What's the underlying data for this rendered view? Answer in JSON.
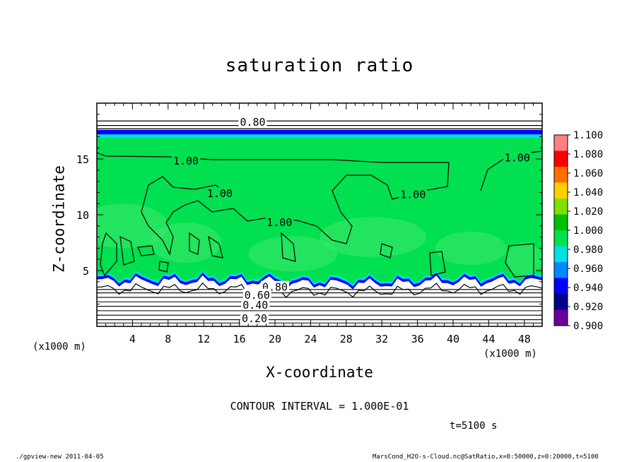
{
  "chart_data": {
    "type": "heatmap",
    "title": "saturation ratio",
    "xlabel": "X-coordinate",
    "ylabel": "Z-coordinate",
    "x_unit": "(x1000 m)",
    "xlim": [
      0,
      50
    ],
    "ylim": [
      0,
      20
    ],
    "x_ticks": [
      4,
      8,
      12,
      16,
      20,
      24,
      28,
      32,
      36,
      40,
      44,
      48
    ],
    "y_ticks": [
      5,
      10,
      15
    ],
    "colorbar": {
      "levels": [
        0.9,
        0.92,
        0.94,
        0.96,
        0.98,
        1.0,
        1.02,
        1.04,
        1.06,
        1.08,
        1.1
      ],
      "labels": [
        "0.900",
        "0.920",
        "0.940",
        "0.960",
        "0.980",
        "1.000",
        "1.020",
        "1.040",
        "1.060",
        "1.080",
        "1.100"
      ],
      "colors": [
        "#6a0099",
        "#00008b",
        "#0000ff",
        "#0088ff",
        "#00e0e0",
        "#00e050",
        "#00c000",
        "#7fe000",
        "#ffd000",
        "#ff7000",
        "#ff0000",
        "#ff8080"
      ]
    },
    "contour_interval": "CONTOUR INTERVAL = 1.000E-01",
    "contour_labels": [
      {
        "text": "0.80",
        "x": 17.5,
        "y": 18.3
      },
      {
        "text": "1.00",
        "x": 10,
        "y": 14.8
      },
      {
        "text": "1.00",
        "x": 13.8,
        "y": 11.9
      },
      {
        "text": "1.00",
        "x": 20.5,
        "y": 9.3
      },
      {
        "text": "1.00",
        "x": 35.5,
        "y": 11.8
      },
      {
        "text": "1.00",
        "x": 47.2,
        "y": 15.1
      },
      {
        "text": "0.80",
        "x": 20,
        "y": 3.5
      },
      {
        "text": "0.60",
        "x": 18,
        "y": 2.8
      },
      {
        "text": "0.40",
        "x": 17.8,
        "y": 1.9
      },
      {
        "text": "0.20",
        "x": 17.7,
        "y": 0.7
      }
    ]
  },
  "annotations": {
    "time": "t=5100 s",
    "footer_left": "./gpview-new   2011-04-05",
    "footer_right": "MarsCond_H2O-s-Cloud.nc@SatRatio,x=0:50000,z=0:20000,t=5100"
  }
}
